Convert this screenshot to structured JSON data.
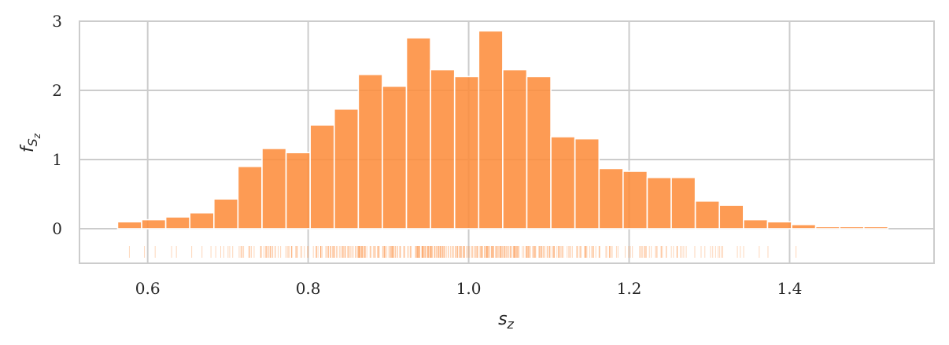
{
  "chart_data": {
    "type": "bar",
    "title": "",
    "xlabel": "s_z",
    "ylabel": "f_{S_z}",
    "xlim": [
      0.515,
      1.58
    ],
    "ylim": [
      -0.5,
      3.0
    ],
    "grid": true,
    "bar_color": "#fd8d3c",
    "rug_color": "#fd8d3c",
    "x_ticks": [
      0.6,
      0.8,
      1.0,
      1.2,
      1.4
    ],
    "x_tick_labels": [
      "0.6",
      "0.8",
      "1.0",
      "1.2",
      "1.4"
    ],
    "y_ticks": [
      0,
      1,
      2,
      3
    ],
    "y_tick_labels": [
      "0",
      "1",
      "2",
      "3"
    ],
    "bin_edges": [
      0.5625,
      0.5925,
      0.6225,
      0.6525,
      0.6825,
      0.7125,
      0.7425,
      0.7725,
      0.8025,
      0.8325,
      0.8625,
      0.8925,
      0.9225,
      0.9525,
      0.9825,
      1.0125,
      1.0425,
      1.0725,
      1.1025,
      1.1325,
      1.1625,
      1.1925,
      1.2225,
      1.2525,
      1.2825,
      1.3125,
      1.3425,
      1.3725,
      1.4025,
      1.4325,
      1.4625,
      1.4925,
      1.5225
    ],
    "values": [
      0.1,
      0.13,
      0.17,
      0.23,
      0.43,
      0.9,
      1.16,
      1.1,
      1.5,
      1.73,
      2.23,
      2.06,
      2.76,
      2.3,
      2.2,
      2.86,
      2.3,
      2.2,
      1.33,
      1.3,
      0.87,
      0.83,
      0.74,
      0.74,
      0.4,
      0.34,
      0.13,
      0.1,
      0.06,
      0.03,
      0.03,
      0.03
    ]
  }
}
